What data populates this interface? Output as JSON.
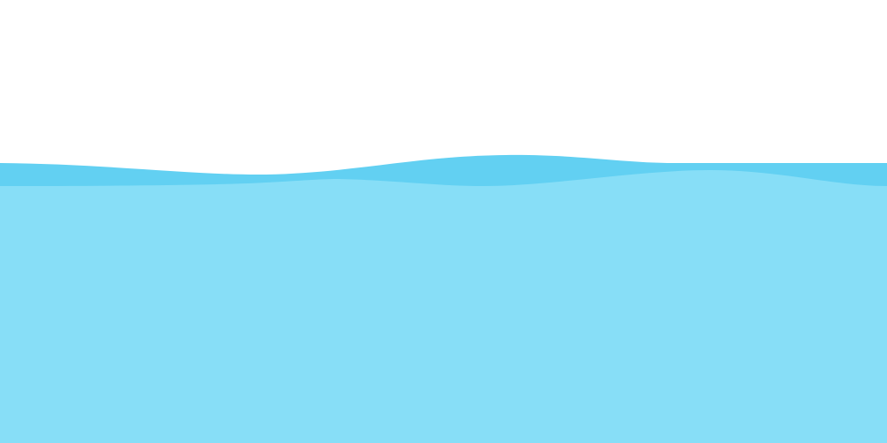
{
  "colors": {
    "background": "#ffffff",
    "back_wave": "#62d0f2",
    "front_wave": "#87def7"
  },
  "layers": [
    {
      "name": "back-wave"
    },
    {
      "name": "front-wave"
    }
  ]
}
